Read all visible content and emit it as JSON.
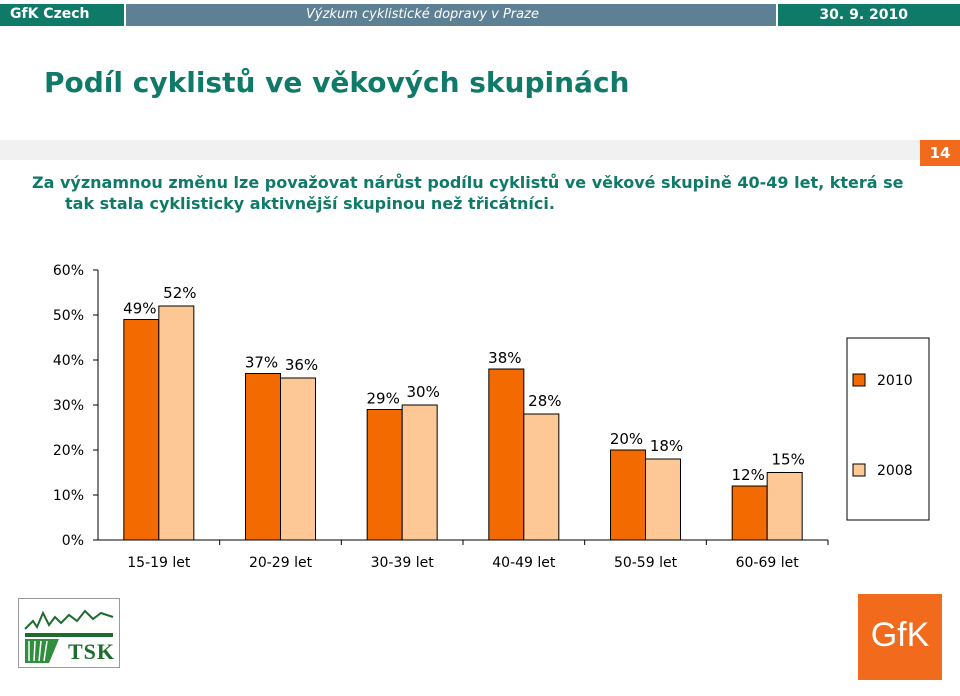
{
  "header": {
    "brand": "GfK Czech",
    "study": "Výzkum cyklistické dopravy v Praze",
    "date": "30. 9. 2010"
  },
  "title": "Podíl cyklistů ve věkových skupinách",
  "page_number": "14",
  "subtitle": {
    "line1": "Za významnou změnu lze považovat nárůst podílu cyklistů ve věkové skupině 40-49 let, která se",
    "line2": "tak stala cyklisticky aktivnější skupinou než třicátníci."
  },
  "colors": {
    "accent_teal": "#0f7a68",
    "header_gray_blue": "#5e8094",
    "series_2010": "#f26a00",
    "series_2008": "#fdc896",
    "gfk_orange": "#f26a1b"
  },
  "chart_data": {
    "type": "bar",
    "categories": [
      "15-19 let",
      "20-29 let",
      "30-39 let",
      "40-49 let",
      "50-59 let",
      "60-69 let"
    ],
    "series": [
      {
        "name": "2010",
        "values": [
          49,
          37,
          29,
          38,
          20,
          12
        ],
        "color": "#f26a00"
      },
      {
        "name": "2008",
        "values": [
          52,
          36,
          30,
          28,
          18,
          15
        ],
        "color": "#fdc896"
      }
    ],
    "data_labels": [
      [
        "49%",
        "52%"
      ],
      [
        "37%",
        "36%"
      ],
      [
        "29%",
        "30%"
      ],
      [
        "38%",
        "28%"
      ],
      [
        "20%",
        "18%"
      ],
      [
        "12%",
        "15%"
      ]
    ],
    "y_ticks": [
      "0%",
      "10%",
      "20%",
      "30%",
      "40%",
      "50%",
      "60%"
    ],
    "ylim": [
      0,
      60
    ],
    "grid": false,
    "legend": "right"
  },
  "logos": {
    "left": "TSK",
    "right": "GfK"
  }
}
